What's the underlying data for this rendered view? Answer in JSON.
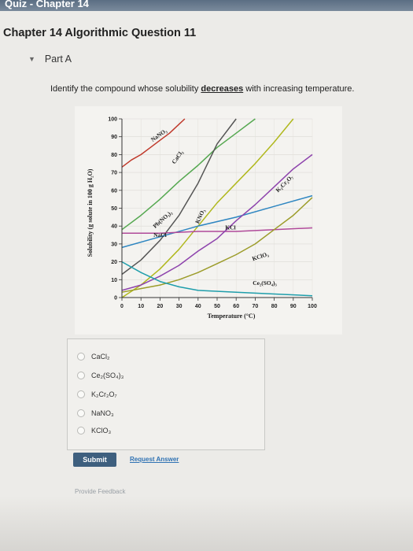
{
  "header": {
    "strip_text": "Quiz - Chapter 14"
  },
  "title": "Chapter 14 Algorithmic Question 11",
  "part": {
    "label": "Part A"
  },
  "question": {
    "prefix": "Identify the compound whose solubility ",
    "emphasis": "decreases",
    "suffix": " with increasing temperature."
  },
  "options": [
    {
      "label": "CaCl₂"
    },
    {
      "label": "Ce₂(SO₄)₃"
    },
    {
      "label": "K₂Cr₂O₇"
    },
    {
      "label": "NaNO₃"
    },
    {
      "label": "KClO₃"
    }
  ],
  "buttons": {
    "submit": "Submit",
    "request_answer": "Request Answer"
  },
  "feedback": "Provide Feedback",
  "chart_data": {
    "type": "line",
    "xlabel": "Temperature (°C)",
    "ylabel": "Solubility (g solute in 100 g H₂O)",
    "xlim": [
      0,
      100
    ],
    "ylim": [
      0,
      100
    ],
    "x_ticks": [
      0,
      10,
      20,
      30,
      40,
      50,
      60,
      70,
      80,
      90,
      100
    ],
    "y_ticks": [
      0,
      10,
      20,
      30,
      40,
      50,
      60,
      70,
      80,
      90,
      100
    ],
    "series": [
      {
        "name": "NaNO₃",
        "color": "#c0392b",
        "label_pos": [
          20,
          90
        ],
        "label_rot": -35,
        "x": [
          0,
          5,
          10,
          15,
          20,
          25,
          30,
          33
        ],
        "y": [
          73,
          77,
          80,
          84,
          88,
          92,
          97,
          100
        ]
      },
      {
        "name": "CaCl₂",
        "color": "#b0b81d",
        "label_pos": [
          30,
          78
        ],
        "label_rot": -55,
        "x": [
          0,
          10,
          20,
          30,
          40,
          50,
          60,
          70,
          80,
          90
        ],
        "y": [
          0,
          7,
          16,
          27,
          40,
          53,
          64,
          75,
          87,
          100
        ]
      },
      {
        "name": "Pb(NO₃)₂",
        "color": "#55a850",
        "label_pos": [
          22,
          43
        ],
        "label_rot": -42,
        "x": [
          0,
          10,
          20,
          30,
          40,
          50,
          60,
          70
        ],
        "y": [
          38,
          46,
          55,
          65,
          74,
          84,
          92,
          100
        ]
      },
      {
        "name": "KNO₃",
        "color": "#555555",
        "label_pos": [
          42,
          45
        ],
        "label_rot": -65,
        "x": [
          0,
          10,
          20,
          30,
          40,
          50,
          60
        ],
        "y": [
          13,
          21,
          32,
          46,
          64,
          86,
          100
        ]
      },
      {
        "name": "KCl",
        "color": "#2e86c1",
        "label_pos": [
          57,
          38
        ],
        "label_rot": 0,
        "x": [
          0,
          20,
          40,
          60,
          80,
          100
        ],
        "y": [
          28,
          34,
          40,
          45,
          51,
          57
        ]
      },
      {
        "name": "NaCl",
        "color": "#b04a9a",
        "label_pos": [
          20,
          34
        ],
        "label_rot": 0,
        "x": [
          0,
          20,
          40,
          60,
          80,
          100
        ],
        "y": [
          36,
          36,
          37,
          37,
          38,
          39
        ]
      },
      {
        "name": "K₂Cr₂O₇",
        "color": "#8e44ad",
        "label_pos": [
          86,
          63
        ],
        "label_rot": -45,
        "x": [
          0,
          10,
          20,
          30,
          40,
          50,
          60,
          70,
          80,
          90,
          100
        ],
        "y": [
          4,
          7,
          12,
          18,
          26,
          33,
          43,
          52,
          62,
          72,
          80
        ]
      },
      {
        "name": "KClO₃",
        "color": "#9c9c2a",
        "label_pos": [
          73,
          22
        ],
        "label_rot": -18,
        "x": [
          0,
          10,
          20,
          30,
          40,
          50,
          60,
          70,
          80,
          90,
          100
        ],
        "y": [
          3,
          5,
          7,
          10,
          14,
          19,
          24,
          30,
          38,
          46,
          56
        ]
      },
      {
        "name": "Ce₂(SO₄)₃",
        "color": "#1f9eab",
        "label_pos": [
          75,
          7
        ],
        "label_rot": 0,
        "x": [
          0,
          10,
          20,
          30,
          40,
          60,
          80,
          100
        ],
        "y": [
          20,
          14,
          9,
          6,
          4,
          3,
          2,
          1
        ]
      }
    ]
  }
}
